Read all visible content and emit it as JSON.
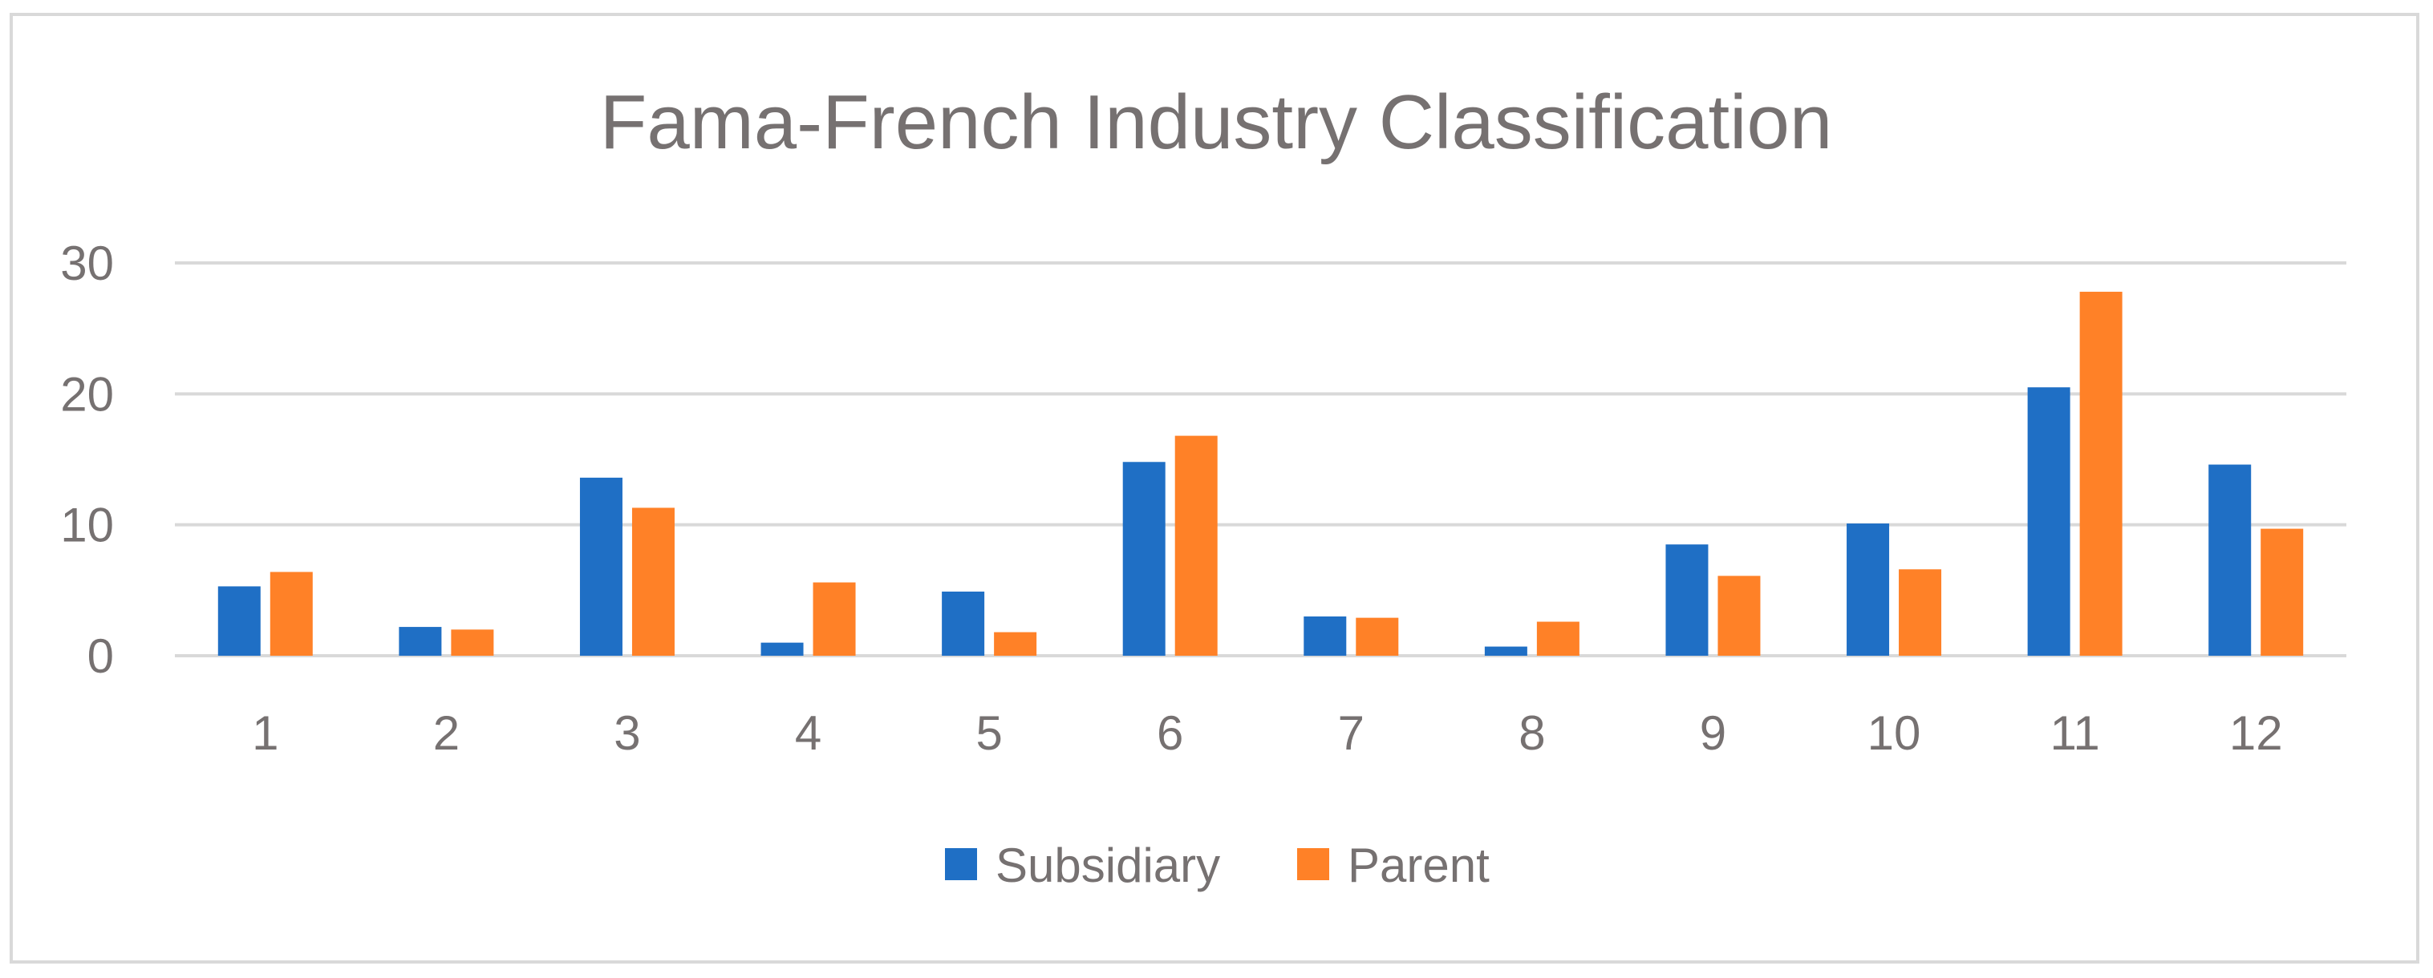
{
  "chart_data": {
    "type": "bar",
    "title": "Fama-French Industry Classification",
    "xlabel": "",
    "ylabel": "",
    "categories": [
      "1",
      "2",
      "3",
      "4",
      "5",
      "6",
      "7",
      "8",
      "9",
      "10",
      "11",
      "12"
    ],
    "series": [
      {
        "name": "Subsidiary",
        "color": "#1f6fc5",
        "values": [
          5.3,
          2.2,
          13.6,
          1.0,
          4.9,
          14.8,
          3.0,
          0.7,
          8.5,
          10.1,
          20.5,
          14.6
        ]
      },
      {
        "name": "Parent",
        "color": "#ff8127",
        "values": [
          6.4,
          2.0,
          11.3,
          5.6,
          1.8,
          16.8,
          2.9,
          2.6,
          6.1,
          6.6,
          27.8,
          9.7
        ]
      }
    ],
    "ylim": [
      0,
      30
    ],
    "yticks": [
      0,
      10,
      20,
      30
    ],
    "grid": true,
    "legend_position": "bottom-center"
  },
  "colors": {
    "gridline": "#d9d9d9",
    "text": "#767171",
    "frame": "#d9d9d9"
  }
}
